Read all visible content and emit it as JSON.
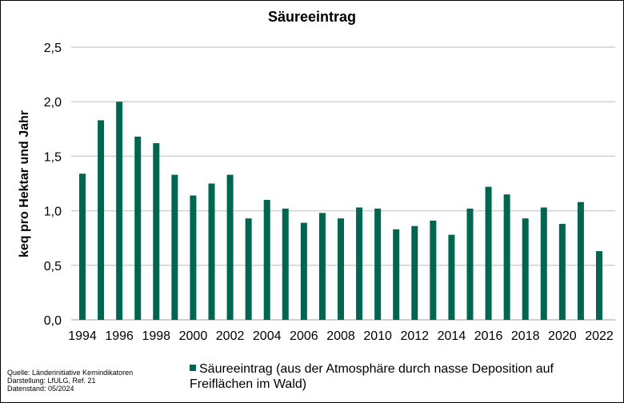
{
  "source": {
    "line1": "Quelle: Länderinitiative Kernindikatoren",
    "line2": "Darstellung: LfULG, Ref. 21",
    "line3": "Datenstand: 05/2024"
  },
  "chart_data": {
    "type": "bar",
    "title": "Säureeintrag",
    "xlabel": "",
    "ylabel": "keq pro Hektar und Jahr",
    "ylim": [
      0,
      2.5
    ],
    "yticks": [
      "0,0",
      "0,5",
      "1,0",
      "1,5",
      "2,0",
      "2,5"
    ],
    "grid": true,
    "legend_position": "bottom",
    "color": "#006650",
    "categories": [
      "1994",
      "1995",
      "1996",
      "1997",
      "1998",
      "1999",
      "2000",
      "2001",
      "2002",
      "2003",
      "2004",
      "2005",
      "2006",
      "2007",
      "2008",
      "2009",
      "2010",
      "2011",
      "2012",
      "2013",
      "2014",
      "2015",
      "2016",
      "2017",
      "2018",
      "2019",
      "2020",
      "2021",
      "2022"
    ],
    "xtick_labels": [
      "1994",
      "1996",
      "1998",
      "2000",
      "2002",
      "2004",
      "2006",
      "2008",
      "2010",
      "2012",
      "2014",
      "2016",
      "2018",
      "2020",
      "2022"
    ],
    "series": [
      {
        "name": "Säureeintrag (aus der Atmosphäre durch nasse Deposition auf Freiflächen im Wald)",
        "values": [
          1.34,
          1.83,
          2.0,
          1.68,
          1.62,
          1.33,
          1.14,
          1.25,
          1.33,
          0.93,
          1.1,
          1.02,
          0.89,
          0.98,
          0.93,
          1.03,
          1.02,
          0.83,
          0.86,
          0.91,
          0.78,
          1.02,
          1.22,
          1.15,
          0.93,
          1.03,
          0.88,
          1.08,
          0.63
        ]
      }
    ]
  }
}
